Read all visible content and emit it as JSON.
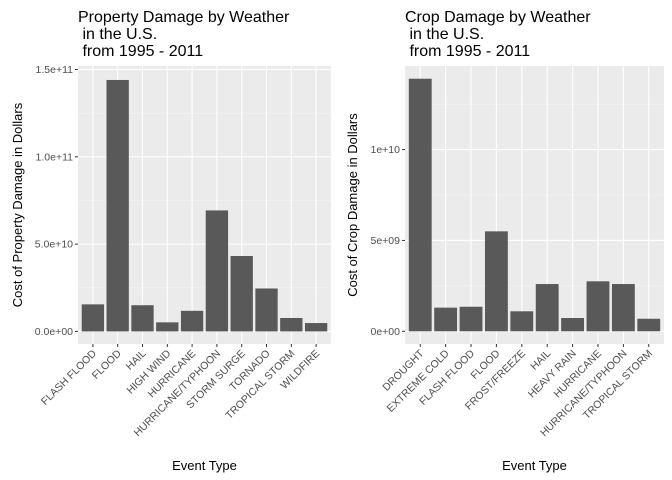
{
  "colors": {
    "panel_bg": "#EBEBEB",
    "grid_major": "#FFFFFF",
    "grid_minor": "#F5F5F5",
    "bar_fill": "#595959",
    "tick_color": "#333333"
  },
  "chart_data": [
    {
      "type": "bar",
      "title": [
        "Property Damage by Weather",
        " in the U.S.",
        " from 1995 - 2011"
      ],
      "xlabel": "Event Type",
      "ylabel": "Cost of Property Damage in Dollars",
      "categories": [
        "FLASH FLOOD",
        "FLOOD",
        "HAIL",
        "HIGH WIND",
        "HURRICANE",
        "HURRICANE/TYPHOON",
        "STORM SURGE",
        "TORNADO",
        "TROPICAL STORM",
        "WILDFIRE"
      ],
      "values": [
        15500000000,
        144000000000,
        15000000000,
        5200000000,
        11800000000,
        69300000000,
        43200000000,
        24600000000,
        7700000000,
        4800000000
      ],
      "ylim": [
        -7200000000,
        152000000000
      ],
      "yticks": [
        0,
        50000000000,
        100000000000,
        150000000000
      ],
      "ytick_labels": [
        "0.0e+00",
        "5.0e+10",
        "1.0e+11",
        "1.5e+11"
      ],
      "grid": true,
      "legend": "none"
    },
    {
      "type": "bar",
      "title": [
        "Crop Damage by Weather",
        " in the U.S.",
        " from 1995 - 2011"
      ],
      "xlabel": "Event Type",
      "ylabel": "Cost of Crop Damage in Dollars",
      "categories": [
        "DROUGHT",
        "EXTREME COLD",
        "FLASH FLOOD",
        "FLOOD",
        "FROST/FREEZE",
        "HAIL",
        "HEAVY RAIN",
        "HURRICANE",
        "HURRICANE/TYPHOON",
        "TROPICAL STORM"
      ],
      "values": [
        13900000000,
        1300000000,
        1350000000,
        5500000000,
        1100000000,
        2600000000,
        730000000,
        2750000000,
        2600000000,
        690000000
      ],
      "ylim": [
        -700000000,
        14600000000
      ],
      "yticks": [
        0,
        5000000000,
        10000000000
      ],
      "ytick_labels": [
        "0e+00",
        "5e+09",
        "1e+10"
      ],
      "grid": true,
      "legend": "none"
    }
  ]
}
